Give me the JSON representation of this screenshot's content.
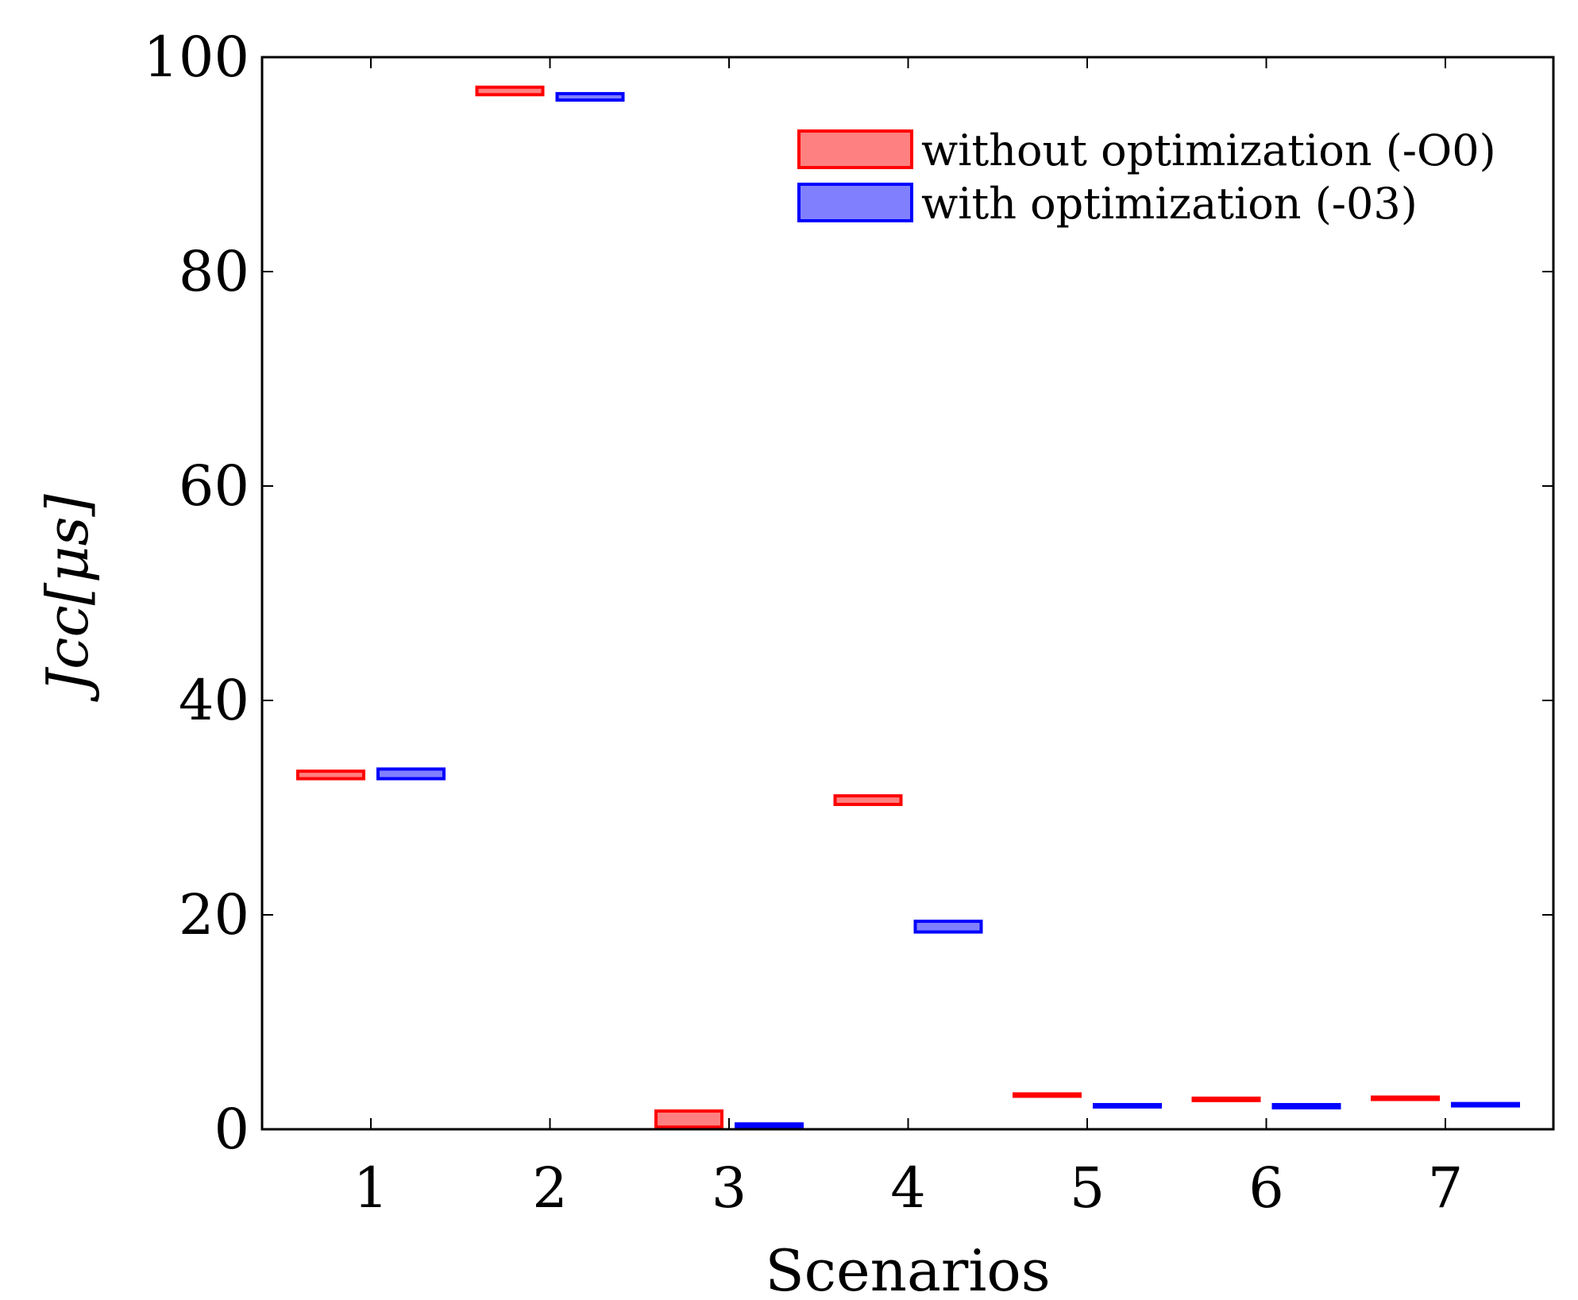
{
  "chart_data": {
    "type": "box",
    "title": "",
    "xlabel": "Scenarios",
    "ylabel": "Jcc[μs]",
    "ylim": [
      0,
      100
    ],
    "yticks": [
      0,
      20,
      40,
      60,
      80,
      100
    ],
    "categories": [
      "1",
      "2",
      "3",
      "4",
      "5",
      "6",
      "7"
    ],
    "legend_position": "top-right",
    "series": [
      {
        "name": "without optimization (-O0)",
        "color": "#ff0000",
        "fill": "#ff8080",
        "ranges": [
          [
            32.7,
            33.4
          ],
          [
            96.5,
            97.2
          ],
          [
            0.2,
            1.7
          ],
          [
            30.3,
            31.1
          ],
          [
            3.2,
            3.3
          ],
          [
            2.8,
            2.9
          ],
          [
            2.9,
            3.0
          ]
        ]
      },
      {
        "name": "with optimization (-03)",
        "color": "#0000ff",
        "fill": "#8080ff",
        "ranges": [
          [
            32.7,
            33.6
          ],
          [
            96.0,
            96.6
          ],
          [
            0.2,
            0.5
          ],
          [
            18.4,
            19.4
          ],
          [
            2.2,
            2.3
          ],
          [
            2.0,
            2.3
          ],
          [
            2.3,
            2.4
          ]
        ]
      }
    ]
  }
}
